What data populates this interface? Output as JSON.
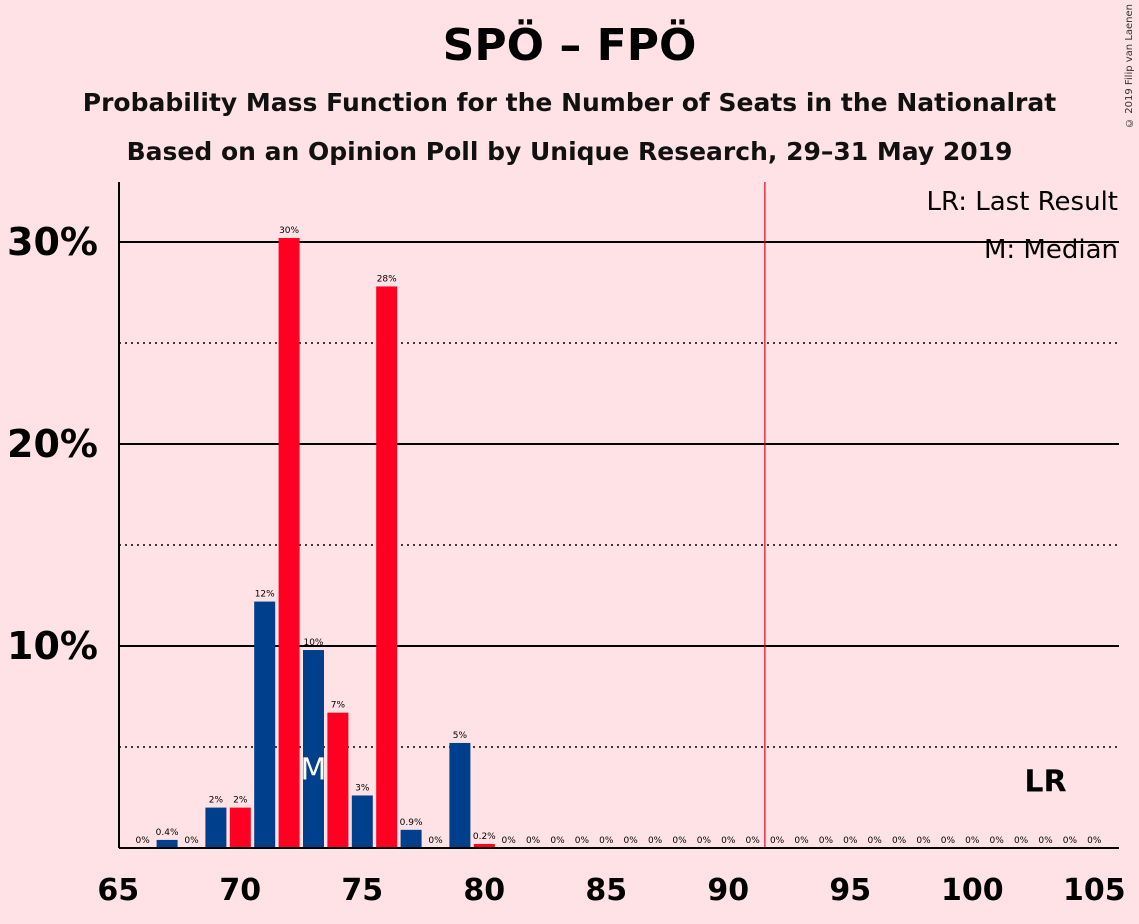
{
  "header": {
    "title": "SPÖ – FPÖ",
    "subtitle_1": "Probability Mass Function for the Number of Seats in the Nationalrat",
    "subtitle_2": "Based on an Opinion Poll by Unique Research, 29–31 May 2019",
    "copyright": "© 2019 Filip van Laenen"
  },
  "legend": {
    "last_result": "LR: Last Result",
    "median": "M: Median"
  },
  "colors": {
    "background": "#FFE2E5",
    "party_a": "#003F8C",
    "party_b": "#FF0022",
    "majority_line": "#E8001C"
  },
  "chart_data": {
    "type": "bar",
    "x": [
      66,
      67,
      68,
      69,
      70,
      71,
      72,
      73,
      74,
      75,
      76,
      77,
      78,
      79,
      80,
      81,
      82,
      83,
      84,
      85,
      86,
      87,
      88,
      89,
      90,
      91,
      92,
      93,
      94,
      95,
      96,
      97,
      98,
      99,
      100,
      101,
      102,
      103,
      104,
      105
    ],
    "values": [
      0,
      0.4,
      0,
      2,
      2,
      12.2,
      30.2,
      9.8,
      6.7,
      2.6,
      27.8,
      0.9,
      0,
      5.2,
      0.2,
      0,
      0,
      0,
      0,
      0,
      0,
      0,
      0,
      0,
      0,
      0,
      0,
      0,
      0,
      0,
      0,
      0,
      0,
      0,
      0,
      0,
      0,
      0,
      0,
      0
    ],
    "labels": [
      "0%",
      "0.4%",
      "0%",
      "2%",
      "2%",
      "12%",
      "30%",
      "10%",
      "7%",
      "3%",
      "28%",
      "0.9%",
      "0%",
      "5%",
      "0.2%",
      "0%",
      "0%",
      "0%",
      "0%",
      "0%",
      "0%",
      "0%",
      "0%",
      "0%",
      "0%",
      "0%",
      "0%",
      "0%",
      "0%",
      "0%",
      "0%",
      "0%",
      "0%",
      "0%",
      "0%",
      "0%",
      "0%",
      "0%",
      "0%",
      "0%"
    ],
    "x_ticks": [
      65,
      70,
      75,
      80,
      85,
      90,
      95,
      100,
      105
    ],
    "y_ticks": [
      10,
      20,
      30
    ],
    "y_tick_labels": [
      "10%",
      "20%",
      "30%"
    ],
    "xlim": [
      65,
      105.5
    ],
    "ylim": [
      0,
      33
    ],
    "median": 73,
    "median_label": "M",
    "last_result": 103,
    "last_result_label": "LR",
    "majority_threshold": 91.5,
    "grid": "solid lines at 10% steps, dotted lines at 5% offsets",
    "legend_position": "top-right"
  }
}
